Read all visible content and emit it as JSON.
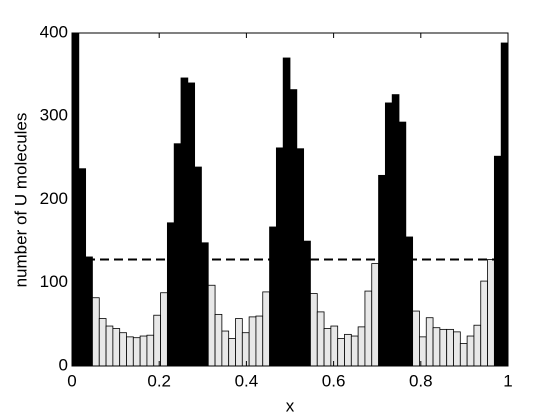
{
  "chart_data": {
    "type": "histogram",
    "xlabel": "x",
    "ylabel": "number of U molecules",
    "bins": [
      0,
      0.015625,
      0.03125,
      0.046875,
      0.0625,
      0.078125,
      0.09375,
      0.109375,
      0.125,
      0.140625,
      0.15625,
      0.171875,
      0.1875,
      0.203125,
      0.21875,
      0.234375,
      0.25,
      0.265625,
      0.28125,
      0.296875,
      0.3125,
      0.328125,
      0.34375,
      0.359375,
      0.375,
      0.390625,
      0.40625,
      0.421875,
      0.4375,
      0.453125,
      0.46875,
      0.484375,
      0.5,
      0.515625,
      0.53125,
      0.546875,
      0.5625,
      0.578125,
      0.59375,
      0.609375,
      0.625,
      0.640625,
      0.65625,
      0.671875,
      0.6875,
      0.703125,
      0.71875,
      0.734375,
      0.75,
      0.765625,
      0.78125,
      0.796875,
      0.8125,
      0.828125,
      0.84375,
      0.859375,
      0.875,
      0.890625,
      0.90625,
      0.921875,
      0.9375,
      0.953125,
      0.96875,
      0.984375,
      1
    ],
    "values": [
      400,
      237,
      131,
      82,
      57,
      48,
      45,
      40,
      35,
      34,
      36,
      37,
      61,
      88,
      172,
      267,
      346,
      340,
      239,
      148,
      97,
      62,
      42,
      33,
      57,
      40,
      59,
      60,
      89,
      167,
      262,
      370,
      332,
      261,
      150,
      87,
      65,
      45,
      48,
      33,
      38,
      36,
      47,
      90,
      123,
      229,
      316,
      326,
      293,
      155,
      66,
      35,
      58,
      46,
      44,
      44,
      41,
      27,
      36,
      49,
      102,
      128,
      252,
      388
    ],
    "threshold": 128,
    "colors": {
      "above": "#000000",
      "below": "#e8e8e8",
      "threshold": "#000000"
    },
    "xlim": [
      0,
      1
    ],
    "xticks": [
      0,
      0.2,
      0.4,
      0.6,
      0.8,
      1
    ],
    "ylim": [
      0,
      400
    ],
    "yticks": [
      0,
      100,
      200,
      300,
      400
    ]
  }
}
